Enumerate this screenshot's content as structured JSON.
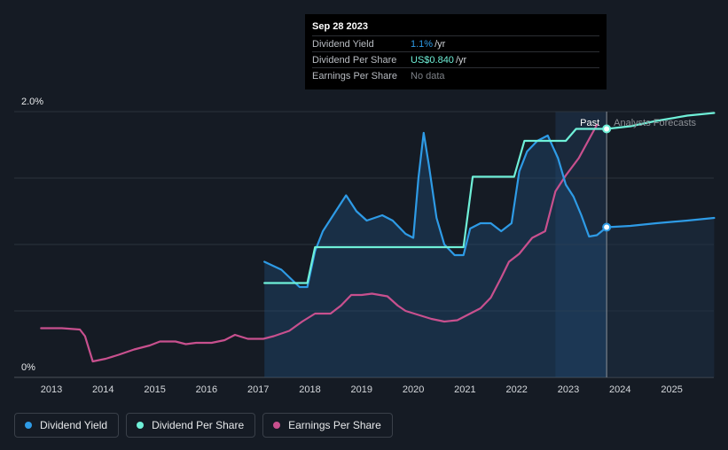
{
  "tooltip": {
    "date": "Sep 28 2023",
    "rows": [
      {
        "label": "Dividend Yield",
        "value": "1.1%",
        "unit": "/yr"
      },
      {
        "label": "Dividend Per Share",
        "value": "US$0.840",
        "unit": "/yr"
      },
      {
        "label": "Earnings Per Share",
        "value": "No data",
        "unit": ""
      }
    ]
  },
  "legend": [
    {
      "label": "Dividend Yield",
      "color": "#2e9be6"
    },
    {
      "label": "Dividend Per Share",
      "color": "#6ff0d8"
    },
    {
      "label": "Earnings Per Share",
      "color": "#c8508e"
    }
  ],
  "chart_data": {
    "type": "line",
    "x_tick_labels": [
      "2013",
      "2014",
      "2015",
      "2016",
      "2017",
      "2018",
      "2019",
      "2020",
      "2021",
      "2022",
      "2023",
      "2024",
      "2025"
    ],
    "y_tick_labels": [
      "2.0%",
      "0%"
    ],
    "ylim": [
      0,
      2.0
    ],
    "region_labels": {
      "past": "Past",
      "forecast": "Analysts Forecasts"
    },
    "past_range": [
      2022.75,
      2023.74
    ],
    "marker_date": 2023.74,
    "series": [
      {
        "name": "Dividend Yield",
        "color": "#2e9be6",
        "points": [
          [
            2017.12,
            0.87
          ],
          [
            2017.45,
            0.81
          ],
          [
            2017.8,
            0.68
          ],
          [
            2017.95,
            0.68
          ],
          [
            2018.1,
            0.95
          ],
          [
            2018.25,
            1.1
          ],
          [
            2018.5,
            1.25
          ],
          [
            2018.7,
            1.37
          ],
          [
            2018.9,
            1.25
          ],
          [
            2019.1,
            1.18
          ],
          [
            2019.4,
            1.22
          ],
          [
            2019.6,
            1.18
          ],
          [
            2019.85,
            1.08
          ],
          [
            2020.0,
            1.05
          ],
          [
            2020.1,
            1.5
          ],
          [
            2020.2,
            1.84
          ],
          [
            2020.3,
            1.6
          ],
          [
            2020.45,
            1.2
          ],
          [
            2020.6,
            1.0
          ],
          [
            2020.8,
            0.92
          ],
          [
            2020.97,
            0.92
          ],
          [
            2021.1,
            1.12
          ],
          [
            2021.3,
            1.16
          ],
          [
            2021.5,
            1.16
          ],
          [
            2021.7,
            1.1
          ],
          [
            2021.9,
            1.16
          ],
          [
            2022.05,
            1.55
          ],
          [
            2022.2,
            1.7
          ],
          [
            2022.4,
            1.78
          ],
          [
            2022.6,
            1.82
          ],
          [
            2022.8,
            1.65
          ],
          [
            2022.95,
            1.45
          ],
          [
            2023.1,
            1.36
          ],
          [
            2023.25,
            1.22
          ],
          [
            2023.4,
            1.06
          ],
          [
            2023.55,
            1.07
          ],
          [
            2023.74,
            1.13
          ]
        ]
      },
      {
        "name": "Dividend Per Share",
        "color": "#6ff0d8",
        "points": [
          [
            2017.12,
            0.71
          ],
          [
            2017.95,
            0.71
          ],
          [
            2018.1,
            0.98
          ],
          [
            2020.97,
            0.98
          ],
          [
            2021.15,
            1.51
          ],
          [
            2021.95,
            1.51
          ],
          [
            2022.15,
            1.78
          ],
          [
            2022.95,
            1.78
          ],
          [
            2023.15,
            1.87
          ],
          [
            2023.74,
            1.87
          ]
        ]
      },
      {
        "name": "Earnings Per Share",
        "color": "#c8508e",
        "points": [
          [
            2012.8,
            0.37
          ],
          [
            2013.2,
            0.37
          ],
          [
            2013.55,
            0.36
          ],
          [
            2013.65,
            0.31
          ],
          [
            2013.8,
            0.12
          ],
          [
            2014.05,
            0.14
          ],
          [
            2014.3,
            0.17
          ],
          [
            2014.6,
            0.21
          ],
          [
            2014.9,
            0.24
          ],
          [
            2015.1,
            0.27
          ],
          [
            2015.4,
            0.27
          ],
          [
            2015.6,
            0.25
          ],
          [
            2015.8,
            0.26
          ],
          [
            2016.1,
            0.26
          ],
          [
            2016.35,
            0.28
          ],
          [
            2016.55,
            0.32
          ],
          [
            2016.8,
            0.29
          ],
          [
            2017.1,
            0.29
          ],
          [
            2017.3,
            0.31
          ],
          [
            2017.6,
            0.35
          ],
          [
            2017.85,
            0.42
          ],
          [
            2018.1,
            0.48
          ],
          [
            2018.4,
            0.48
          ],
          [
            2018.6,
            0.54
          ],
          [
            2018.8,
            0.62
          ],
          [
            2019.0,
            0.62
          ],
          [
            2019.2,
            0.63
          ],
          [
            2019.5,
            0.61
          ],
          [
            2019.7,
            0.54
          ],
          [
            2019.85,
            0.5
          ],
          [
            2020.1,
            0.47
          ],
          [
            2020.35,
            0.44
          ],
          [
            2020.6,
            0.42
          ],
          [
            2020.85,
            0.43
          ],
          [
            2021.0,
            0.46
          ],
          [
            2021.3,
            0.52
          ],
          [
            2021.5,
            0.6
          ],
          [
            2021.7,
            0.75
          ],
          [
            2021.85,
            0.87
          ],
          [
            2022.05,
            0.93
          ],
          [
            2022.3,
            1.05
          ],
          [
            2022.55,
            1.1
          ],
          [
            2022.75,
            1.4
          ],
          [
            2022.95,
            1.52
          ],
          [
            2023.2,
            1.65
          ],
          [
            2023.55,
            1.9
          ]
        ]
      }
    ],
    "forecast_series": [
      {
        "name": "Dividend Per Share",
        "color": "#6ff0d8",
        "points": [
          [
            2023.74,
            1.87
          ],
          [
            2024.2,
            1.89
          ],
          [
            2024.7,
            1.93
          ],
          [
            2025.3,
            1.97
          ],
          [
            2025.82,
            1.99
          ]
        ]
      },
      {
        "name": "Dividend Yield",
        "color": "#2e9be6",
        "points": [
          [
            2023.74,
            1.13
          ],
          [
            2024.2,
            1.14
          ],
          [
            2024.7,
            1.16
          ],
          [
            2025.3,
            1.18
          ],
          [
            2025.82,
            1.2
          ]
        ]
      }
    ]
  }
}
